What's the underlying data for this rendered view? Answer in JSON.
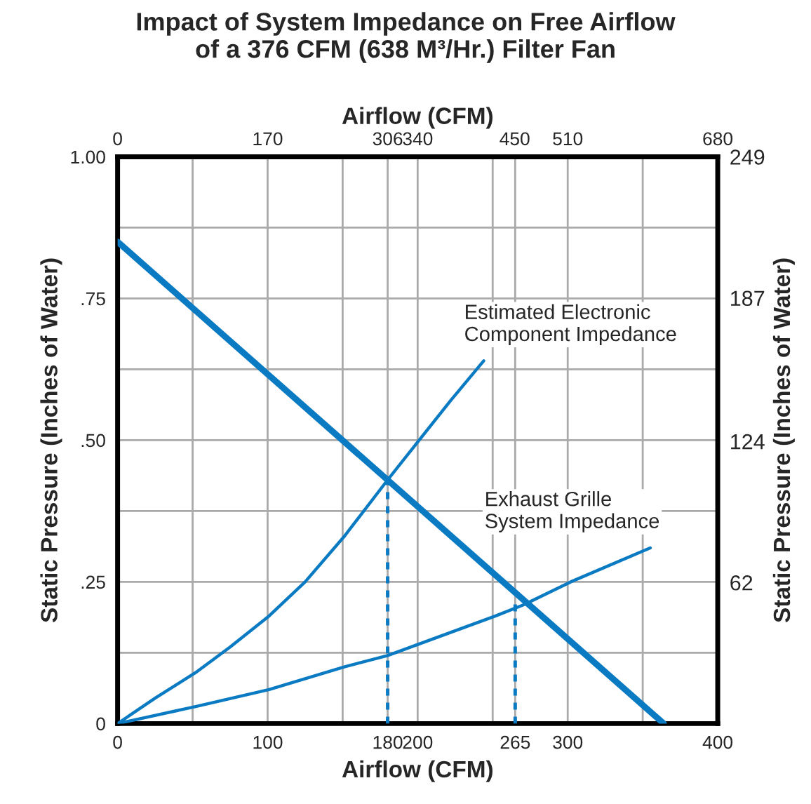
{
  "chart_data": {
    "type": "line",
    "title": "Impact of System Impedance on Free Airflow\nof a 376 CFM (638 M³/Hr.) Filter Fan",
    "xlabel": "Airflow (CFM)",
    "x2label": "Airflow (CFM)",
    "ylabel": "Static Pressure (Inches of Water)",
    "y2label": "Static Pressure (Inches of Water)",
    "xlim": [
      0,
      400
    ],
    "xticks": [
      0,
      {
        "value": 50,
        "label": null
      },
      100,
      {
        "value": 150,
        "label": null
      },
      180,
      200,
      {
        "value": 250,
        "label": null
      },
      265,
      300,
      {
        "value": 350,
        "label": null
      },
      400
    ],
    "x2lim": [
      0,
      680
    ],
    "x2ticks": [
      0,
      170,
      306,
      340,
      450,
      510,
      680
    ],
    "ylim": [
      0,
      1
    ],
    "yticks": [
      {
        "value": 0,
        "label": "0"
      },
      {
        "value": 0.125,
        "label": null
      },
      {
        "value": 0.25,
        "label": ".25"
      },
      {
        "value": 0.375,
        "label": null
      },
      {
        "value": 0.5,
        "label": ".50"
      },
      {
        "value": 0.625,
        "label": null
      },
      {
        "value": 0.75,
        "label": ".75"
      },
      {
        "value": 0.875,
        "label": null
      },
      {
        "value": 1,
        "label": "1.00"
      }
    ],
    "y2lim": [
      0,
      249
    ],
    "y2ticks": [
      62,
      124,
      187,
      249
    ],
    "grid": true,
    "legend": false,
    "series": [
      {
        "color": "#0a7bc2",
        "x": [
          0,
          364
        ],
        "values": [
          0.85,
          0
        ]
      },
      {
        "color": "#0a7bc2",
        "x": [
          0,
          25,
          52,
          75,
          101,
          125,
          151,
          180,
          201,
          222,
          244
        ],
        "values": [
          0,
          0.045,
          0.09,
          0.135,
          0.19,
          0.25,
          0.33,
          0.43,
          0.5,
          0.57,
          0.64
        ]
      },
      {
        "color": "#0a7bc2",
        "x": [
          0,
          52,
          101,
          151,
          180,
          252,
          271,
          302,
          355
        ],
        "values": [
          0,
          0.03,
          0.06,
          0.1,
          0.12,
          0.19,
          0.21,
          0.25,
          0.31
        ]
      },
      {
        "color": "#0a7bc2",
        "line_style": "dotted",
        "x": [
          180,
          180
        ],
        "values": [
          0,
          0.43
        ]
      },
      {
        "color": "#0a7bc2",
        "line_style": "dotted",
        "x": [
          265,
          265
        ],
        "values": [
          0,
          0.22
        ]
      }
    ],
    "annotations": [
      {
        "text": "Estimated Electronic\nComponent Impedance",
        "x": 244,
        "y": 0.64
      },
      {
        "text": "Exhaust Grille\nSystem Impedance",
        "x": 355,
        "y": 0.31
      }
    ]
  }
}
